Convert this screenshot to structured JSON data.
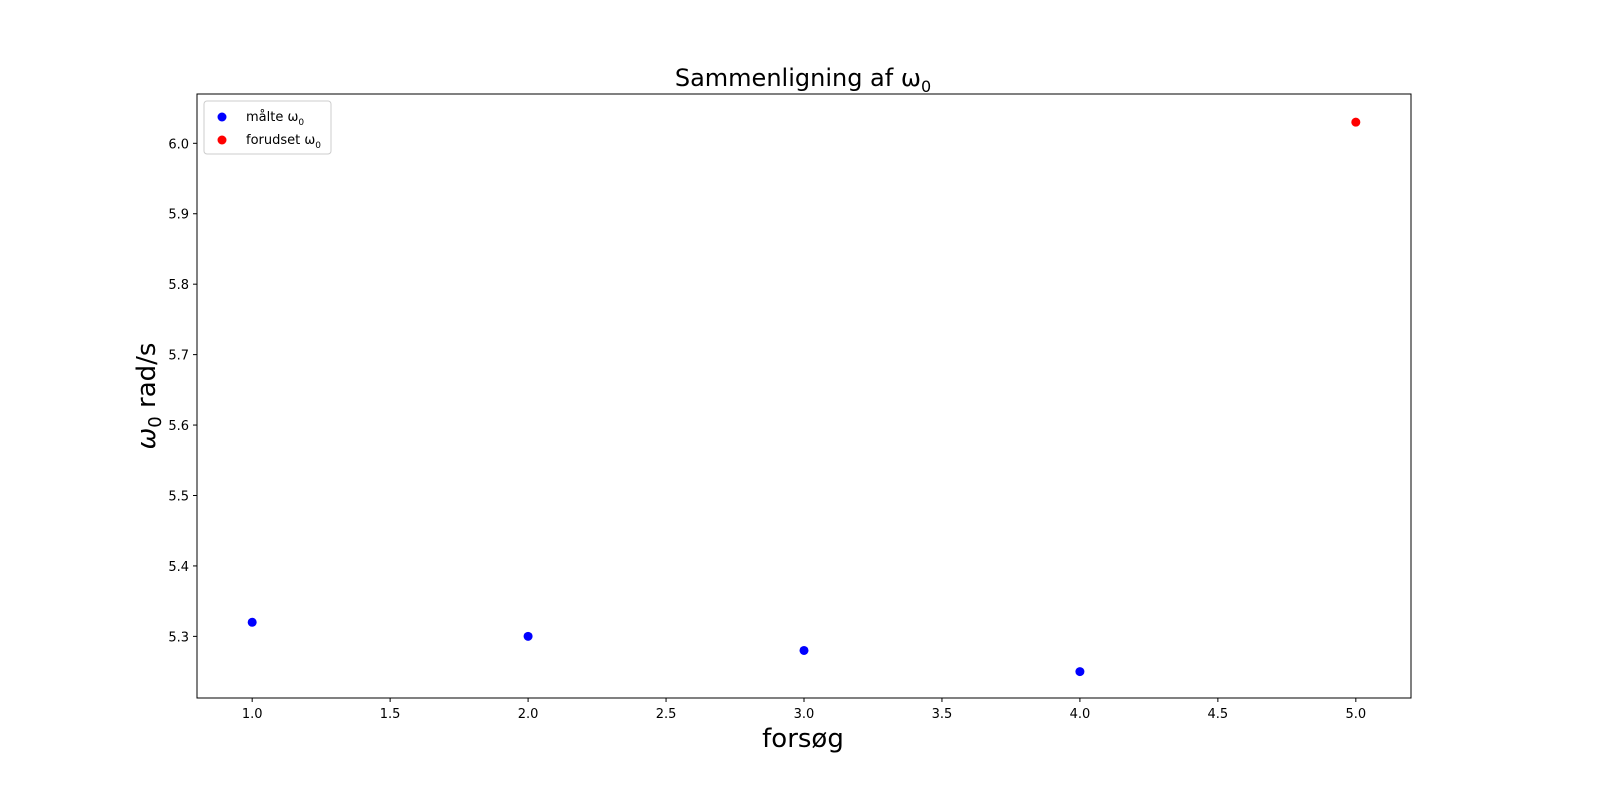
{
  "chart_data": {
    "type": "scatter",
    "title": {
      "text": "Sammenligning af ω",
      "sub": "0"
    },
    "xlabel": "forsøg",
    "ylabel": {
      "symbol": "ω",
      "sub": "0",
      "text": " rad/s"
    },
    "xlim": [
      0.8,
      5.2
    ],
    "ylim": [
      5.2125,
      6.07
    ],
    "xticks": [
      "1.0",
      "1.5",
      "2.0",
      "2.5",
      "3.0",
      "3.5",
      "4.0",
      "4.5",
      "5.0"
    ],
    "yticks": [
      "5.3",
      "5.4",
      "5.5",
      "5.6",
      "5.7",
      "5.8",
      "5.9",
      "6.0"
    ],
    "grid": false,
    "legend_position": "upper-left",
    "series": [
      {
        "name": "målte ω",
        "name_sub": "0",
        "color": "#0000ff",
        "points": [
          {
            "x": 1,
            "y": 5.32
          },
          {
            "x": 2,
            "y": 5.3
          },
          {
            "x": 3,
            "y": 5.28
          },
          {
            "x": 4,
            "y": 5.25
          }
        ]
      },
      {
        "name": "forudset ω",
        "name_sub": "0",
        "color": "#ff0000",
        "points": [
          {
            "x": 5,
            "y": 6.03
          }
        ]
      }
    ]
  }
}
